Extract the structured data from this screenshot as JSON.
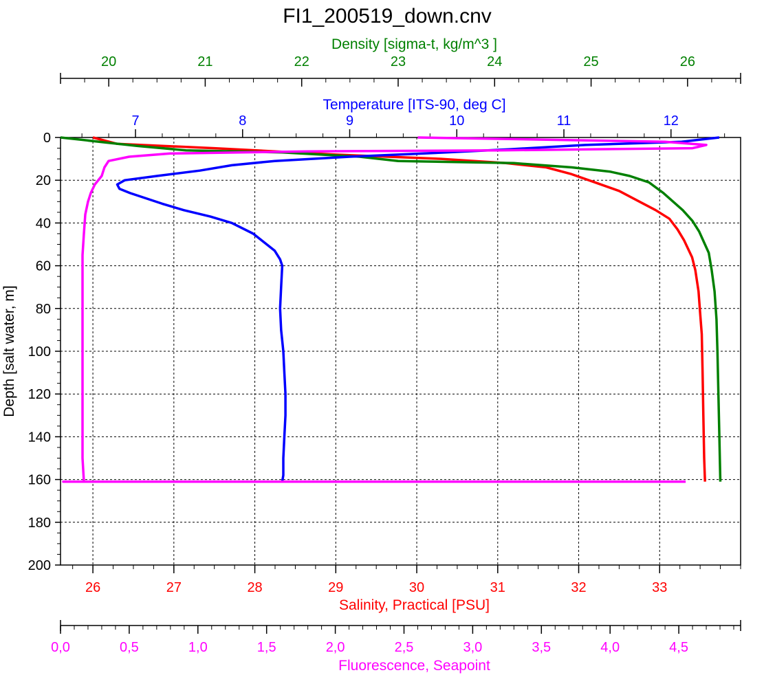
{
  "chart_data": {
    "type": "line",
    "title": "FI1_200519_down.cnv",
    "grid": true,
    "y_axis": {
      "label": "Depth [salt water, m]",
      "range": [
        0,
        200
      ],
      "inverted": true,
      "major_ticks": [
        0,
        20,
        40,
        60,
        80,
        100,
        120,
        140,
        160,
        180,
        200
      ],
      "tick_labels": [
        "0",
        "20",
        "40",
        "60",
        "80",
        "100",
        "120",
        "140",
        "160",
        "180",
        "200"
      ]
    },
    "x_axes": [
      {
        "id": "density",
        "label": "Density [sigma-t, kg/m^3 ]",
        "position": "top",
        "color": "#008000",
        "range": [
          19.5,
          26.55
        ],
        "major_ticks": [
          20,
          21,
          22,
          23,
          24,
          25,
          26
        ],
        "tick_labels": [
          "20",
          "21",
          "22",
          "23",
          "24",
          "25",
          "26"
        ]
      },
      {
        "id": "temperature",
        "label": "Temperature [ITS-90, deg C]",
        "position": "top",
        "color": "#0000ff",
        "range": [
          6.3,
          12.65
        ],
        "major_ticks": [
          7,
          8,
          9,
          10,
          11,
          12
        ],
        "tick_labels": [
          "7",
          "8",
          "9",
          "10",
          "11",
          "12"
        ]
      },
      {
        "id": "salinity",
        "label": "Salinity, Practical [PSU]",
        "position": "bottom",
        "color": "#ff0000",
        "range": [
          25.6,
          34.0
        ],
        "major_ticks": [
          26,
          27,
          28,
          29,
          30,
          31,
          32,
          33
        ],
        "tick_labels": [
          "26",
          "27",
          "28",
          "29",
          "30",
          "31",
          "32",
          "33"
        ]
      },
      {
        "id": "fluorescence",
        "label": "Fluorescence, Seapoint",
        "position": "bottom",
        "color": "#ff00ff",
        "range": [
          0,
          4.95
        ],
        "major_ticks": [
          0,
          0.5,
          1,
          1.5,
          2,
          2.5,
          3,
          3.5,
          4,
          4.5
        ],
        "tick_labels": [
          "0,0",
          "0,5",
          "1,0",
          "1,5",
          "2,0",
          "2,5",
          "3,0",
          "3,5",
          "4,0",
          "4,5"
        ]
      }
    ],
    "series": [
      {
        "axis": "salinity",
        "color": "#ff0000",
        "points": [
          [
            26.0,
            0
          ],
          [
            26.3,
            3
          ],
          [
            27.5,
            5
          ],
          [
            29.0,
            8
          ],
          [
            30.3,
            10
          ],
          [
            31.1,
            12
          ],
          [
            31.6,
            14
          ],
          [
            31.9,
            17
          ],
          [
            32.2,
            21
          ],
          [
            32.5,
            25
          ],
          [
            32.75,
            30
          ],
          [
            32.95,
            34
          ],
          [
            33.12,
            38
          ],
          [
            33.22,
            43
          ],
          [
            33.3,
            48
          ],
          [
            33.35,
            52
          ],
          [
            33.4,
            56
          ],
          [
            33.44,
            62
          ],
          [
            33.48,
            72
          ],
          [
            33.5,
            82
          ],
          [
            33.52,
            92
          ],
          [
            33.53,
            110
          ],
          [
            33.54,
            130
          ],
          [
            33.55,
            150
          ],
          [
            33.56,
            161
          ]
        ]
      },
      {
        "axis": "density",
        "color": "#008000",
        "points": [
          [
            19.5,
            0
          ],
          [
            19.9,
            2
          ],
          [
            20.3,
            4
          ],
          [
            20.8,
            6
          ],
          [
            21.8,
            7
          ],
          [
            22.6,
            9
          ],
          [
            23.0,
            11
          ],
          [
            24.2,
            12
          ],
          [
            24.8,
            14
          ],
          [
            25.2,
            16
          ],
          [
            25.4,
            18
          ],
          [
            25.6,
            21
          ],
          [
            25.75,
            26
          ],
          [
            25.85,
            30
          ],
          [
            25.95,
            34
          ],
          [
            26.05,
            39
          ],
          [
            26.12,
            44
          ],
          [
            26.17,
            49
          ],
          [
            26.22,
            54
          ],
          [
            26.25,
            62
          ],
          [
            26.28,
            72
          ],
          [
            26.3,
            85
          ],
          [
            26.31,
            100
          ],
          [
            26.32,
            120
          ],
          [
            26.33,
            140
          ],
          [
            26.34,
            161
          ]
        ]
      },
      {
        "axis": "temperature",
        "color": "#0000ff",
        "points": [
          [
            12.45,
            0
          ],
          [
            12.1,
            2
          ],
          [
            11.2,
            3.5
          ],
          [
            10.5,
            5.5
          ],
          [
            9.9,
            7
          ],
          [
            9.0,
            9
          ],
          [
            8.3,
            11
          ],
          [
            7.9,
            13
          ],
          [
            7.6,
            15.5
          ],
          [
            7.2,
            18
          ],
          [
            6.9,
            20
          ],
          [
            6.83,
            22
          ],
          [
            6.85,
            24
          ],
          [
            6.95,
            26
          ],
          [
            7.1,
            28.5
          ],
          [
            7.25,
            31
          ],
          [
            7.45,
            34
          ],
          [
            7.7,
            37
          ],
          [
            7.9,
            40
          ],
          [
            8.1,
            45
          ],
          [
            8.2,
            49
          ],
          [
            8.3,
            53
          ],
          [
            8.35,
            57
          ],
          [
            8.37,
            60
          ],
          [
            8.36,
            70
          ],
          [
            8.35,
            80
          ],
          [
            8.36,
            90
          ],
          [
            8.38,
            100
          ],
          [
            8.39,
            110
          ],
          [
            8.4,
            120
          ],
          [
            8.4,
            130
          ],
          [
            8.39,
            140
          ],
          [
            8.38,
            150
          ],
          [
            8.38,
            158
          ],
          [
            8.37,
            161
          ]
        ]
      },
      {
        "axis": "fluorescence",
        "color": "#ff00ff",
        "points": [
          [
            2.6,
            0
          ],
          [
            3.5,
            1
          ],
          [
            4.4,
            2
          ],
          [
            4.7,
            3.5
          ],
          [
            4.6,
            5
          ],
          [
            3.2,
            6
          ],
          [
            1.8,
            6.5
          ],
          [
            0.8,
            7.5
          ],
          [
            0.5,
            9
          ],
          [
            0.35,
            11
          ],
          [
            0.32,
            14
          ],
          [
            0.3,
            18
          ],
          [
            0.25,
            22
          ],
          [
            0.22,
            26
          ],
          [
            0.2,
            30
          ],
          [
            0.18,
            36
          ],
          [
            0.17,
            45
          ],
          [
            0.16,
            55
          ],
          [
            0.16,
            70
          ],
          [
            0.16,
            90
          ],
          [
            0.16,
            110
          ],
          [
            0.16,
            130
          ],
          [
            0.16,
            150
          ],
          [
            0.17,
            161
          ],
          [
            0.02,
            161
          ],
          [
            4.55,
            161
          ]
        ]
      }
    ]
  }
}
